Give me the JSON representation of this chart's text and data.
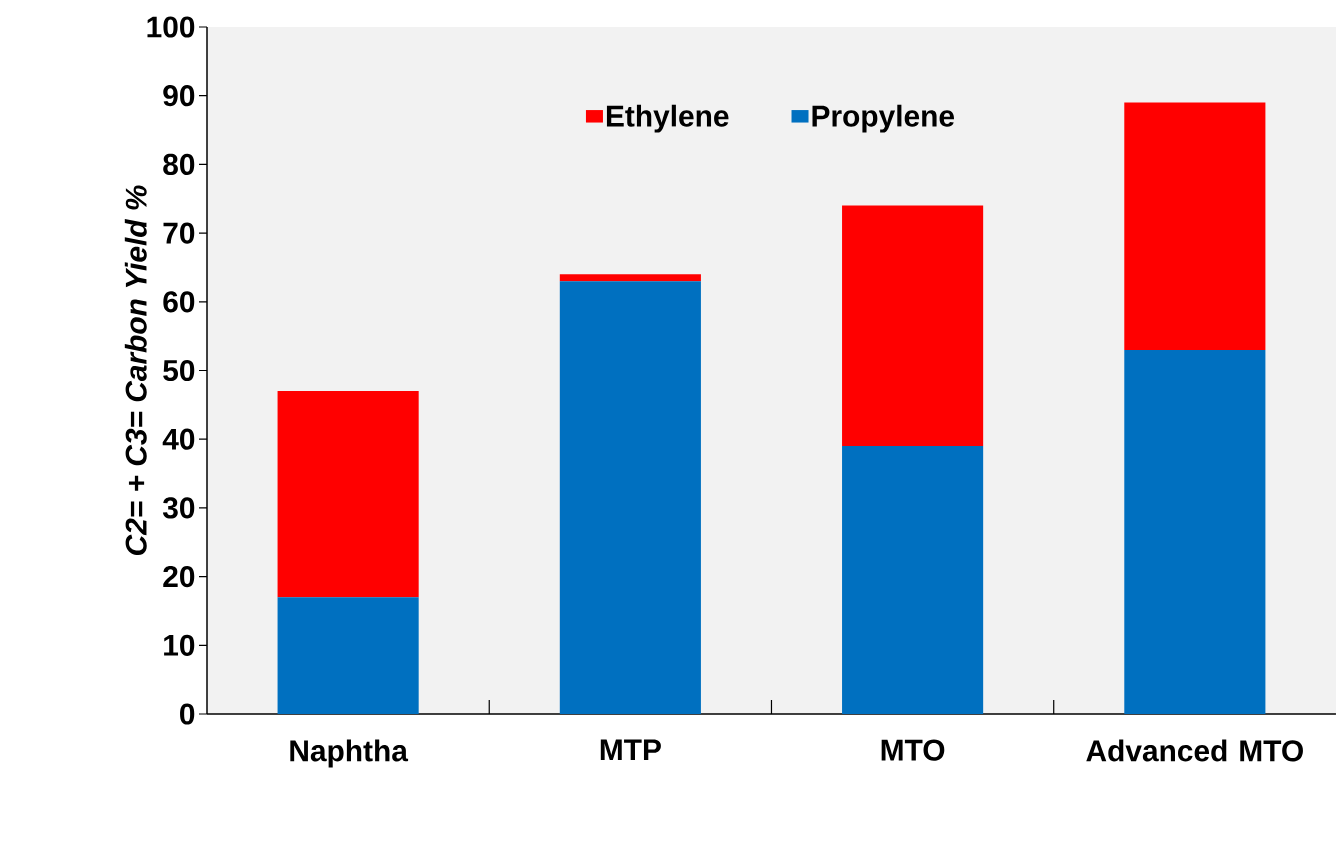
{
  "chart_data": {
    "type": "bar",
    "stacked": true,
    "ylabel": "C2= + C3= Carbon Yield %",
    "categories": [
      "Naphtha",
      "MTP",
      "MTO",
      "Advanced MTO"
    ],
    "series": [
      {
        "name": "Propylene",
        "color": "#0070c0",
        "values": [
          17,
          63,
          39,
          53
        ]
      },
      {
        "name": "Ethylene",
        "color": "#ff0000",
        "values": [
          30,
          1,
          35,
          36
        ]
      }
    ],
    "ylim": [
      0,
      100
    ],
    "yticks": [
      0,
      10,
      20,
      30,
      40,
      50,
      60,
      70,
      80,
      90,
      100
    ],
    "legend": "top",
    "grid": false
  }
}
